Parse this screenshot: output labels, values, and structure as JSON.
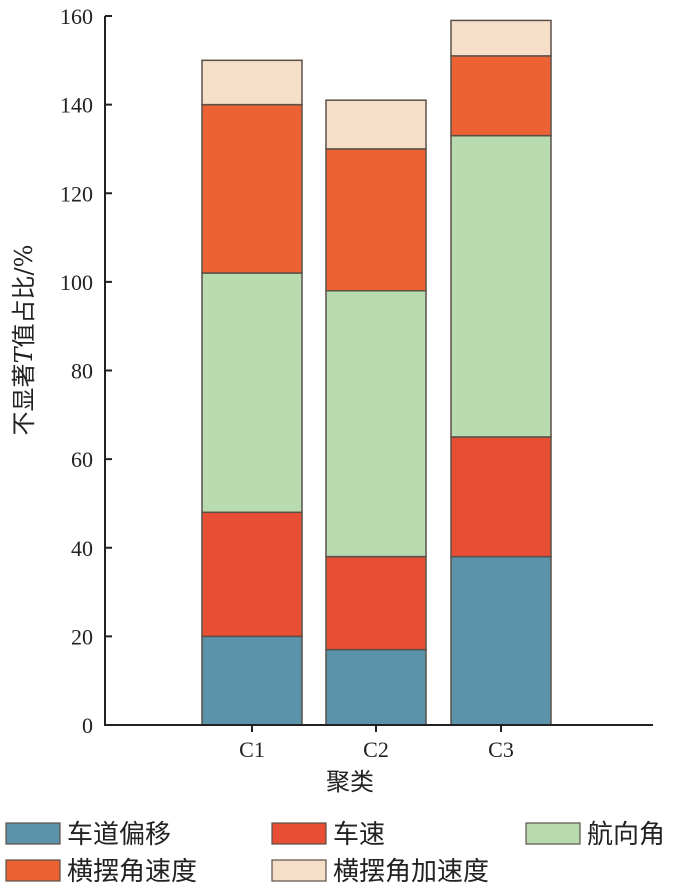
{
  "chart_data": {
    "type": "bar",
    "stacked": true,
    "title": "",
    "xlabel": "聚类",
    "ylabel_prefix": "不显著",
    "ylabel_italic": "T",
    "ylabel_suffix": "值占比/%",
    "ylim": [
      0,
      160
    ],
    "yticks": [
      0,
      20,
      40,
      60,
      80,
      100,
      120,
      140,
      160
    ],
    "categories": [
      "C1",
      "C2",
      "C3"
    ],
    "series": [
      {
        "name": "车道偏移",
        "color": "#5b93ab",
        "values": [
          20,
          17,
          38
        ]
      },
      {
        "name": "车速",
        "color": "#e84e33",
        "values": [
          28,
          21,
          27
        ]
      },
      {
        "name": "航向角",
        "color": "#b8dbb0",
        "values": [
          54,
          60,
          68
        ]
      },
      {
        "name": "横摆角速度",
        "color": "#ec6235",
        "values": [
          38,
          32,
          18
        ]
      },
      {
        "name": "横摆角加速度",
        "color": "#f7dec8",
        "values": [
          10,
          11,
          8
        ]
      }
    ],
    "legend_position": "bottom",
    "grid": false
  }
}
